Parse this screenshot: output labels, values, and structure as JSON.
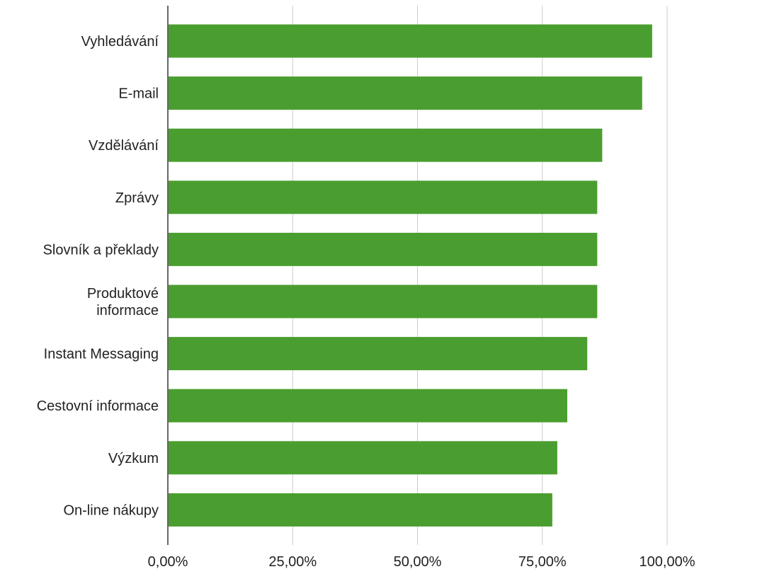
{
  "chart_data": {
    "type": "bar",
    "orientation": "horizontal",
    "categories": [
      "Vyhledávání",
      "E-mail",
      "Vzdělávání",
      "Zprávy",
      "Slovník a překlady",
      "Produktové informace",
      "Instant Messaging",
      "Cestovní informace",
      "Výzkum",
      "On-line nákupy"
    ],
    "category_lines": [
      [
        "Vyhledávání"
      ],
      [
        "E-mail"
      ],
      [
        "Vzdělávání"
      ],
      [
        "Zprávy"
      ],
      [
        "Slovník a překlady"
      ],
      [
        "Produktové",
        "informace"
      ],
      [
        "Instant Messaging"
      ],
      [
        "Cestovní informace"
      ],
      [
        "Výzkum"
      ],
      [
        "On-line nákupy"
      ]
    ],
    "values": [
      97,
      95,
      87,
      86,
      86,
      86,
      84,
      80,
      78,
      77
    ],
    "xlim": [
      0,
      100
    ],
    "x_ticks": [
      0,
      25,
      50,
      75,
      100
    ],
    "x_tick_labels": [
      "0,00%",
      "25,00%",
      "50,00%",
      "75,00%",
      "100,00%"
    ],
    "grid": true,
    "bar_color": "#4a9e2f",
    "title": "",
    "xlabel": "",
    "ylabel": ""
  }
}
